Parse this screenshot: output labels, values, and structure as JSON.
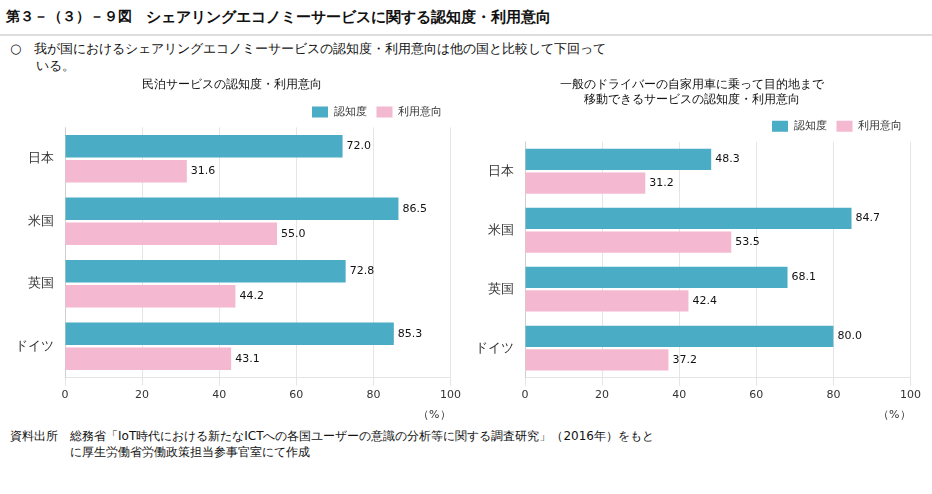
{
  "title": "シェアリングエコノミーサービスに関する認知度・利用意向",
  "subtitle": [
    "○　我が国におけるシェアリングエコノミーサービスの認知度・利用意向は他の国と比較して下回って",
    "　　いる。"
  ],
  "annotations": [
    "第３－（３）－９図",
    "資料出所　総務省「IoT時代における新たなICTへの各国ユーザーの意識の分析等に関する調査研究」（2016年）をもと",
    "　　　　　に厚生労働省労働政策担当参事官室にて作成"
  ],
  "chart_data": [
    {
      "type": "bar",
      "orientation": "horizontal",
      "title": "民泊サービスの認知度・利用意向",
      "categories": [
        "日本",
        "米国",
        "英国",
        "ドイツ"
      ],
      "series": [
        {
          "name": "認知度",
          "color": "#4bacc6",
          "values": [
            72.0,
            86.5,
            72.8,
            85.3
          ],
          "value_labels": [
            "72.0",
            "86.5",
            "72.8",
            "85.3"
          ]
        },
        {
          "name": "利用意向",
          "color": "#f4b8d1",
          "values": [
            31.6,
            55.0,
            44.2,
            43.1
          ],
          "value_labels": [
            "31.6",
            "55.0",
            "44.2",
            "43.1"
          ]
        }
      ],
      "xlabel": "（%）",
      "xlim": [
        0,
        100
      ],
      "xticks": [
        0,
        20,
        40,
        60,
        80,
        100
      ],
      "grid": true,
      "legend": "upper right",
      "data_labels": true
    },
    {
      "type": "bar",
      "orientation": "horizontal",
      "title": [
        "一般のドライバーの自家用車に乗って目的地まで",
        "移動できるサービスの認知度・利用意向"
      ],
      "categories": [
        "日本",
        "米国",
        "英国",
        "ドイツ"
      ],
      "series": [
        {
          "name": "認知度",
          "color": "#4bacc6",
          "values": [
            48.3,
            84.7,
            68.1,
            80.0
          ],
          "value_labels": [
            "48.3",
            "84.7",
            "68.1",
            "80.0"
          ]
        },
        {
          "name": "利用意向",
          "color": "#f4b8d1",
          "values": [
            31.2,
            53.5,
            42.4,
            37.2
          ],
          "value_labels": [
            "31.2",
            "53.5",
            "42.4",
            "37.2"
          ]
        }
      ],
      "xlabel": "（%）",
      "xlim": [
        0,
        100
      ],
      "xticks": [
        0,
        20,
        40,
        60,
        80,
        100
      ],
      "grid": true,
      "legend": "upper right",
      "data_labels": true
    }
  ]
}
